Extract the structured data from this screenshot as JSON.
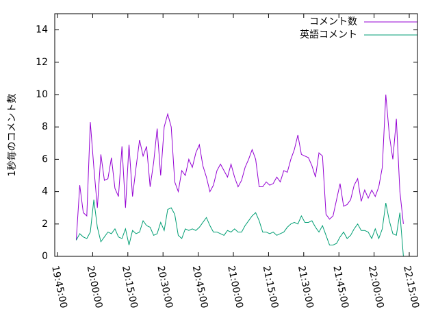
{
  "chart_data": {
    "type": "line",
    "y_label": "1秒毎のコメント数",
    "x": [
      "19:53:00",
      "19:54:30",
      "19:56:00",
      "19:57:30",
      "19:59:00",
      "20:00:30",
      "20:02:00",
      "20:03:30",
      "20:05:00",
      "20:06:30",
      "20:08:00",
      "20:09:30",
      "20:11:00",
      "20:12:30",
      "20:14:00",
      "20:15:30",
      "20:17:00",
      "20:18:30",
      "20:20:00",
      "20:21:30",
      "20:23:00",
      "20:24:30",
      "20:26:00",
      "20:27:30",
      "20:29:00",
      "20:30:30",
      "20:32:00",
      "20:33:30",
      "20:35:00",
      "20:36:30",
      "20:38:00",
      "20:39:30",
      "20:41:00",
      "20:42:30",
      "20:44:00",
      "20:45:30",
      "20:47:00",
      "20:48:30",
      "20:50:00",
      "20:51:30",
      "20:53:00",
      "20:54:30",
      "20:56:00",
      "20:57:30",
      "20:59:00",
      "21:00:30",
      "21:02:00",
      "21:03:30",
      "21:05:00",
      "21:06:30",
      "21:08:00",
      "21:09:30",
      "21:11:00",
      "21:12:30",
      "21:14:00",
      "21:15:30",
      "21:17:00",
      "21:18:30",
      "21:20:00",
      "21:21:30",
      "21:23:00",
      "21:24:30",
      "21:26:00",
      "21:27:30",
      "21:29:00",
      "21:30:30",
      "21:32:00",
      "21:33:30",
      "21:35:00",
      "21:36:30",
      "21:38:00",
      "21:39:30",
      "21:41:00",
      "21:42:30",
      "21:44:00",
      "21:45:30",
      "21:47:00",
      "21:48:30",
      "21:50:00",
      "21:51:30",
      "21:53:00",
      "21:54:30",
      "21:56:00",
      "21:57:30",
      "21:59:00",
      "22:00:30",
      "22:02:00",
      "22:03:30",
      "22:05:00",
      "22:06:30",
      "22:08:00",
      "22:09:30",
      "22:11:00",
      "22:12:30"
    ],
    "series": [
      {
        "name": "コメント数",
        "color": "#9400d3",
        "values": [
          1.0,
          4.4,
          2.7,
          2.5,
          8.3,
          5.5,
          3.0,
          6.3,
          4.7,
          4.8,
          6.1,
          4.2,
          3.7,
          6.8,
          3.0,
          6.9,
          3.7,
          5.5,
          7.2,
          6.2,
          6.8,
          4.3,
          5.8,
          7.9,
          5.0,
          8.0,
          8.8,
          8.0,
          4.6,
          4.0,
          5.3,
          5.0,
          6.0,
          5.5,
          6.4,
          6.9,
          5.6,
          4.9,
          4.0,
          4.4,
          5.3,
          5.7,
          5.3,
          4.9,
          5.7,
          4.9,
          4.3,
          4.7,
          5.5,
          6.0,
          6.6,
          6.0,
          4.3,
          4.3,
          4.6,
          4.4,
          4.5,
          4.9,
          4.6,
          5.3,
          5.2,
          6.0,
          6.6,
          7.5,
          6.3,
          6.2,
          6.1,
          5.6,
          4.9,
          6.4,
          6.2,
          2.6,
          2.3,
          2.5,
          3.5,
          4.5,
          3.1,
          3.2,
          3.5,
          4.4,
          4.8,
          3.4,
          4.1,
          3.6,
          4.1,
          3.7,
          4.3,
          5.5,
          10.0,
          7.5,
          6.0,
          8.5,
          4.0,
          2.0
        ]
      },
      {
        "name": "英語コメント",
        "color": "#009e73",
        "values": [
          1.0,
          1.4,
          1.2,
          1.1,
          1.5,
          3.5,
          1.8,
          0.9,
          1.2,
          1.5,
          1.4,
          1.7,
          1.2,
          1.1,
          1.7,
          0.7,
          1.6,
          1.4,
          1.5,
          2.2,
          1.9,
          1.8,
          1.3,
          1.4,
          2.1,
          1.6,
          2.9,
          3.0,
          2.6,
          1.3,
          1.1,
          1.7,
          1.6,
          1.7,
          1.6,
          1.8,
          2.1,
          2.4,
          1.9,
          1.5,
          1.5,
          1.4,
          1.3,
          1.6,
          1.5,
          1.7,
          1.5,
          1.5,
          1.9,
          2.2,
          2.5,
          2.7,
          2.2,
          1.5,
          1.5,
          1.4,
          1.5,
          1.3,
          1.4,
          1.5,
          1.8,
          2.0,
          2.1,
          2.0,
          2.5,
          2.1,
          2.1,
          2.2,
          1.8,
          1.5,
          1.9,
          1.3,
          0.7,
          0.7,
          0.8,
          1.2,
          1.5,
          1.1,
          1.3,
          1.7,
          2.0,
          1.6,
          1.6,
          1.5,
          1.1,
          1.7,
          1.1,
          1.7,
          3.3,
          2.2,
          1.4,
          1.3,
          2.7,
          0.0
        ]
      }
    ],
    "xlim": [
      "19:43:50",
      "22:18:30"
    ],
    "xticks": [
      "19:45:00",
      "20:00:00",
      "20:15:00",
      "20:30:00",
      "20:45:00",
      "21:00:00",
      "21:15:00",
      "21:30:00",
      "21:45:00",
      "22:00:00",
      "22:15:00"
    ],
    "ylim": [
      0,
      15
    ],
    "yticks": [
      0,
      2,
      4,
      6,
      8,
      10,
      12,
      14
    ],
    "legend": "top-right",
    "grid": false
  }
}
